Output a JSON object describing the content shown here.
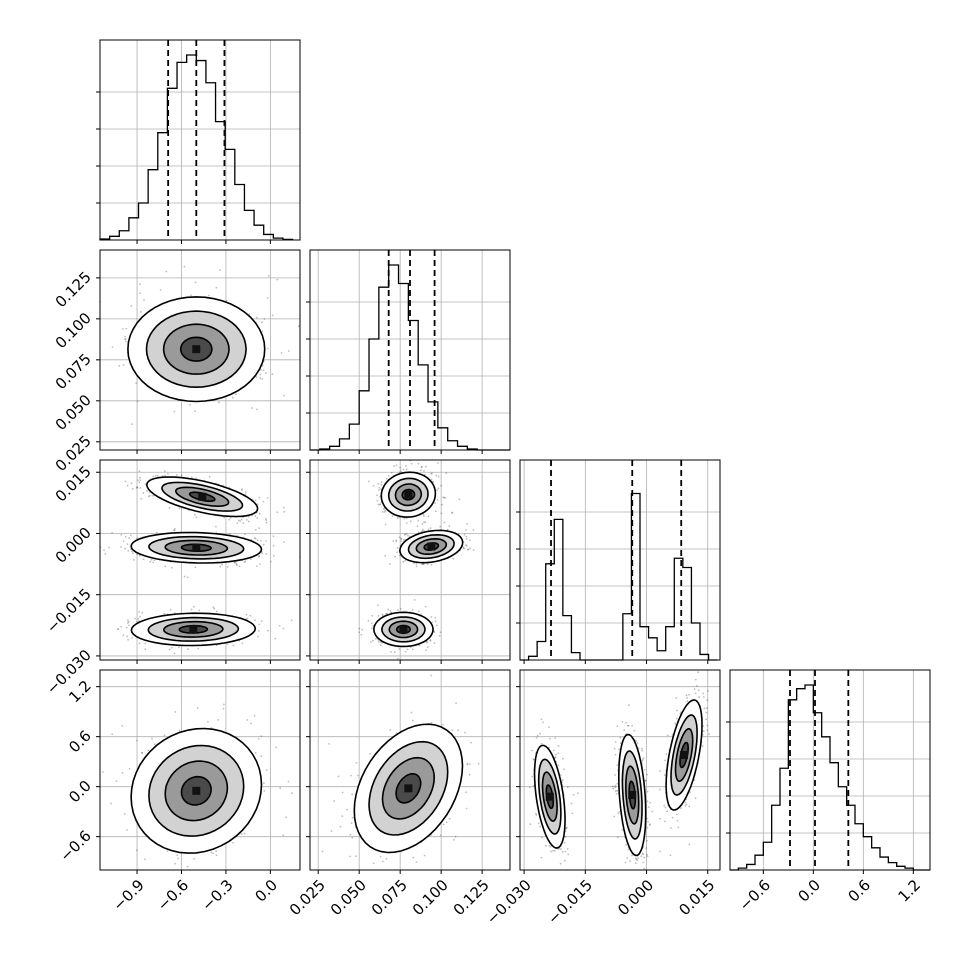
{
  "chart_data": {
    "type": "corner",
    "grid": true,
    "parameters": [
      {
        "range": [
          -1.15,
          0.2
        ],
        "ticks": [
          -0.9,
          -0.6,
          -0.3,
          0.0
        ],
        "tick_labels": [
          "−0.9",
          "−0.6",
          "−0.3",
          "0.0"
        ],
        "quantiles": [
          -0.69,
          -0.5,
          -0.31
        ],
        "hist": {
          "bins": [
            -1.15,
            -1.085,
            -1.02,
            -0.955,
            -0.89,
            -0.825,
            -0.76,
            -0.695,
            -0.63,
            -0.565,
            -0.5,
            -0.435,
            -0.37,
            -0.305,
            -0.24,
            -0.175,
            -0.11,
            -0.045,
            0.02,
            0.085,
            0.15
          ],
          "counts": [
            0.005,
            0.02,
            0.05,
            0.12,
            0.2,
            0.38,
            0.58,
            0.82,
            0.96,
            1.0,
            0.97,
            0.85,
            0.64,
            0.49,
            0.3,
            0.16,
            0.08,
            0.03,
            0.01,
            0.003
          ]
        }
      },
      {
        "range": [
          0.02,
          0.142
        ],
        "ticks": [
          0.025,
          0.05,
          0.075,
          0.1,
          0.125
        ],
        "tick_labels": [
          "0.025",
          "0.050",
          "0.075",
          "0.100",
          "0.125"
        ],
        "quantiles": [
          0.068,
          0.081,
          0.096
        ],
        "hist": {
          "bins": [
            0.02,
            0.026,
            0.032,
            0.038,
            0.044,
            0.05,
            0.056,
            0.062,
            0.068,
            0.074,
            0.08,
            0.086,
            0.092,
            0.098,
            0.104,
            0.11,
            0.116,
            0.122,
            0.128,
            0.134,
            0.142
          ],
          "counts": [
            0.0,
            0.005,
            0.02,
            0.06,
            0.14,
            0.32,
            0.6,
            0.88,
            1.0,
            0.9,
            0.7,
            0.46,
            0.26,
            0.12,
            0.05,
            0.02,
            0.005,
            0.0,
            0.0,
            0.0
          ]
        }
      },
      {
        "range": [
          -0.031,
          0.018
        ],
        "ticks": [
          -0.03,
          -0.015,
          0.0,
          0.015
        ],
        "tick_labels": [
          "−0.030",
          "−0.015",
          "0.000",
          "0.015"
        ],
        "quantiles": [
          -0.0234,
          -0.0035,
          0.0085
        ],
        "hist": {
          "bins": [
            -0.031,
            -0.0289,
            -0.0268,
            -0.0247,
            -0.0226,
            -0.0205,
            -0.0184,
            -0.0163,
            -0.0142,
            -0.0121,
            -0.01,
            -0.0079,
            -0.0058,
            -0.0037,
            -0.0016,
            0.0005,
            0.0026,
            0.0047,
            0.0068,
            0.0089,
            0.011,
            0.0131,
            0.0152,
            0.0173
          ],
          "counts": [
            0.0,
            0.02,
            0.1,
            0.52,
            0.76,
            0.24,
            0.04,
            0.0,
            0.0,
            0.0,
            0.0,
            0.0,
            0.25,
            0.9,
            0.18,
            0.12,
            0.05,
            0.18,
            0.55,
            0.5,
            0.2,
            0.03,
            0.0
          ]
        }
      },
      {
        "range": [
          -1.0,
          1.4
        ],
        "ticks": [
          -0.6,
          0.0,
          0.6,
          1.2
        ],
        "tick_labels": [
          "−0.6",
          "0.0",
          "0.6",
          "1.2"
        ],
        "quantiles": [
          -0.28,
          0.02,
          0.42
        ],
        "hist": {
          "bins": [
            -1.0,
            -0.9,
            -0.8,
            -0.7,
            -0.6,
            -0.5,
            -0.4,
            -0.3,
            -0.2,
            -0.1,
            0.0,
            0.1,
            0.2,
            0.3,
            0.4,
            0.5,
            0.6,
            0.7,
            0.8,
            0.9,
            1.0,
            1.1,
            1.2,
            1.3,
            1.4
          ],
          "counts": [
            0.0,
            0.01,
            0.03,
            0.08,
            0.15,
            0.35,
            0.55,
            0.92,
            0.98,
            1.0,
            0.85,
            0.72,
            0.58,
            0.45,
            0.35,
            0.25,
            0.18,
            0.12,
            0.07,
            0.04,
            0.02,
            0.01,
            0.0,
            0.0
          ]
        }
      }
    ],
    "pairs": [
      {
        "row": 1,
        "col": 0,
        "blobs": [
          {
            "mx": -0.5,
            "my": 0.0815,
            "sx": 0.21,
            "sy": 0.0145,
            "rho": 0.0
          }
        ]
      },
      {
        "row": 2,
        "col": 0,
        "blobs": [
          {
            "mx": -0.46,
            "my": 0.009,
            "sx": 0.17,
            "sy": 0.0022,
            "rho": -0.6
          },
          {
            "mx": -0.5,
            "my": -0.0035,
            "sx": 0.2,
            "sy": 0.0017,
            "rho": -0.1
          },
          {
            "mx": -0.52,
            "my": -0.0235,
            "sx": 0.19,
            "sy": 0.0018,
            "rho": 0.05
          }
        ]
      },
      {
        "row": 2,
        "col": 1,
        "blobs": [
          {
            "mx": 0.08,
            "my": 0.0095,
            "sx": 0.0075,
            "sy": 0.0025,
            "rho": 0.05
          },
          {
            "mx": 0.094,
            "my": -0.0032,
            "sx": 0.0087,
            "sy": 0.0018,
            "rho": 0.25
          },
          {
            "mx": 0.077,
            "my": -0.0235,
            "sx": 0.0082,
            "sy": 0.0019,
            "rho": 0.0
          }
        ]
      },
      {
        "row": 3,
        "col": 0,
        "blobs": [
          {
            "mx": -0.5,
            "my": -0.05,
            "sx": 0.2,
            "sy": 0.34,
            "rho": 0.1
          }
        ]
      },
      {
        "row": 3,
        "col": 1,
        "blobs": [
          {
            "mx": 0.08,
            "my": -0.02,
            "sx": 0.015,
            "sy": 0.35,
            "rho": 0.35
          }
        ]
      },
      {
        "row": 3,
        "col": 2,
        "blobs": [
          {
            "mx": -0.0237,
            "my": -0.12,
            "sx": 0.0017,
            "sy": 0.28,
            "rho": -0.45
          },
          {
            "mx": -0.0035,
            "my": -0.1,
            "sx": 0.0015,
            "sy": 0.33,
            "rho": -0.3
          },
          {
            "mx": 0.0092,
            "my": 0.38,
            "sx": 0.002,
            "sy": 0.3,
            "rho": 0.55
          }
        ]
      }
    ]
  }
}
